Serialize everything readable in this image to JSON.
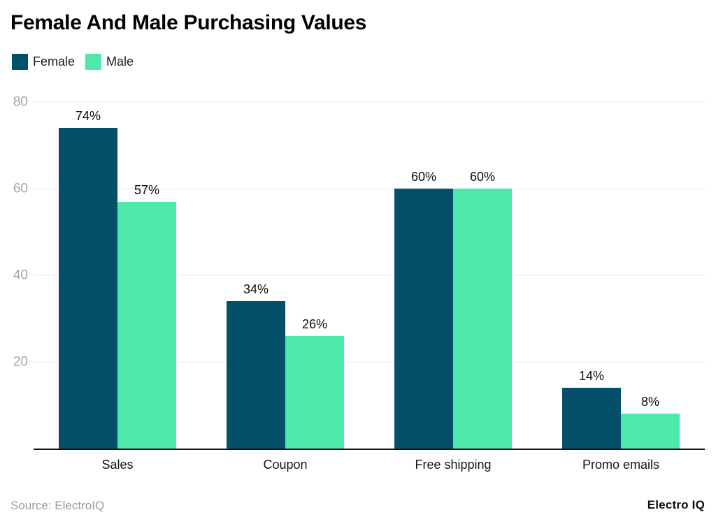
{
  "header": {
    "title": "Female And Male Purchasing Values"
  },
  "chart_data": {
    "type": "bar",
    "title": "Female And Male Purchasing Values",
    "categories": [
      "Sales",
      "Coupon",
      "Free shipping",
      "Promo emails"
    ],
    "series": [
      {
        "name": "Female",
        "color": "#04506b",
        "values": [
          74,
          34,
          60,
          14
        ]
      },
      {
        "name": "Male",
        "color": "#4de9aa",
        "values": [
          57,
          26,
          60,
          8
        ]
      }
    ],
    "value_suffix": "%",
    "xlabel": "",
    "ylabel": "",
    "ylim": [
      0,
      80
    ],
    "yticks": [
      20,
      40,
      60,
      80
    ],
    "grid": true,
    "legend_position": "top-left",
    "colors": {
      "gridline": "#e8e8e8",
      "axis_line": "#141414",
      "tick_text": "#a5a5a5"
    }
  },
  "footer": {
    "source": "Source: ElectroIQ",
    "brand": "Electro IQ"
  }
}
